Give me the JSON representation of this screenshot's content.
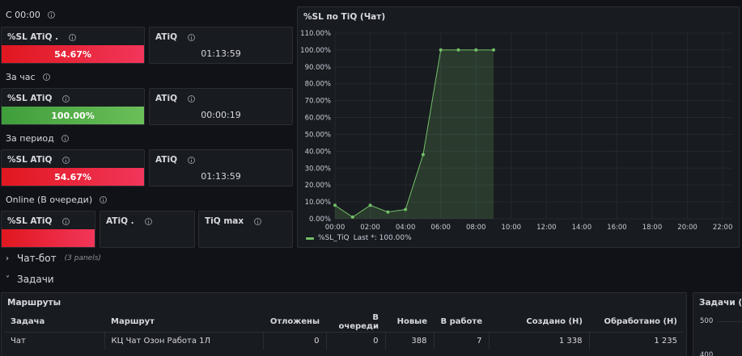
{
  "rows": {
    "since_midnight": "С 00:00",
    "per_hour": "За час",
    "per_period": "За период",
    "online": "Online (В очереди)"
  },
  "stats": {
    "sl_since": {
      "title": "%SL ATiQ .",
      "value": "54.67%",
      "status": "red"
    },
    "atiq_since": {
      "title": "ATiQ",
      "value": "01:13:59"
    },
    "sl_hour": {
      "title": "%SL ATiQ",
      "value": "100.00%",
      "status": "green"
    },
    "atiq_hour": {
      "title": "ATiQ",
      "value": "00:00:19"
    },
    "sl_period": {
      "title": "%SL ATiQ",
      "value": "54.67%",
      "status": "red"
    },
    "atiq_period": {
      "title": "ATiQ",
      "value": "01:13:59"
    },
    "sl_online": {
      "title": "%SL ATiQ",
      "value": "",
      "status": "red"
    },
    "atiq_online": {
      "title": "ATiQ .",
      "value": ""
    },
    "tiq_max": {
      "title": "TiQ max",
      "value": ""
    }
  },
  "chart_panel": {
    "title": "%SL по TiQ (Чат)",
    "legend_name": "%SL_TiQ",
    "legend_last": "Last *: 100.00%"
  },
  "chart_data": {
    "type": "area",
    "title": "%SL по TiQ (Чат)",
    "x_ticks": [
      "00:00",
      "02:00",
      "04:00",
      "06:00",
      "08:00",
      "10:00",
      "12:00",
      "14:00",
      "16:00",
      "18:00",
      "20:00",
      "22:00"
    ],
    "y_ticks": [
      "0.00%",
      "10.00%",
      "20.00%",
      "30.00%",
      "40.00%",
      "50.00%",
      "60.00%",
      "70.00%",
      "80.00%",
      "90.00%",
      "100.00%",
      "110.00%"
    ],
    "ylim": [
      0,
      110
    ],
    "xlim_hours": [
      0,
      22.5
    ],
    "grid": true,
    "legend_placement": "bottom-left",
    "series": [
      {
        "name": "%SL_TiQ",
        "color": "#73bf69",
        "x_hours": [
          0,
          1,
          2,
          3,
          4,
          5,
          6,
          7,
          8,
          9
        ],
        "values": [
          8,
          1,
          8,
          4,
          5.5,
          38,
          100,
          100,
          100,
          100
        ]
      }
    ]
  },
  "sections": {
    "chatbot": {
      "label": "Чат-бот",
      "meta": "(3 panels)"
    },
    "tasks": {
      "label": "Задачи"
    }
  },
  "routes_panel": {
    "title": "Маршруты",
    "columns": [
      "Задача",
      "Маршрут",
      "Отложены",
      "В очереди",
      "Новые",
      "В работе",
      "Создано (Н)",
      "Обработано (Н)"
    ],
    "rows": [
      [
        "Чат",
        "КЦ Чат Озон Работа 1Л",
        "0",
        "0",
        "388",
        "7",
        "1 338",
        "1 235"
      ]
    ]
  },
  "tasks_panel": {
    "title": "Задачи (Ча",
    "y_ticks": [
      "500",
      "400"
    ]
  }
}
